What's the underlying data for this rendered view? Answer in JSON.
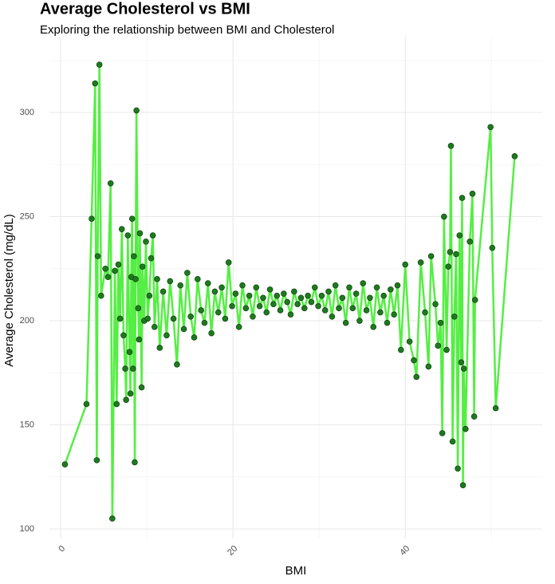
{
  "chart_data": {
    "type": "line",
    "title": "Average Cholesterol vs BMI",
    "subtitle": "Exploring the relationship between BMI and Cholesterol",
    "x_label": "BMI",
    "y_label": "Average Cholesterol (mg/dL)",
    "line_color": "#55ee44",
    "point_color": "#1f7a1f",
    "point_edge": "#0f4a0f",
    "grid": true,
    "xlim": [
      -1.3,
      55.9
    ],
    "ylim": [
      95.4,
      336.8
    ],
    "xticks": [
      0,
      20,
      40
    ],
    "yticks": [
      100,
      150,
      200,
      250,
      300
    ],
    "x_minor_ticks": [
      10,
      30,
      50
    ],
    "y_minor_ticks": [
      125,
      175,
      225,
      275,
      325
    ],
    "x": [
      0.5,
      3,
      3.6,
      4,
      4.2,
      4.3,
      4.5,
      4.7,
      5.2,
      5.5,
      5.8,
      6.0,
      6.3,
      6.5,
      6.7,
      6.9,
      7.1,
      7.3,
      7.5,
      7.6,
      7.8,
      8.0,
      8.1,
      8.2,
      8.3,
      8.4,
      8.5,
      8.6,
      8.7,
      8.8,
      9.0,
      9.1,
      9.2,
      9.4,
      9.5,
      9.7,
      9.9,
      10.1,
      10.3,
      10.5,
      10.7,
      10.9,
      11.2,
      11.5,
      11.9,
      12.3,
      12.7,
      13.1,
      13.5,
      13.9,
      14.3,
      14.7,
      15.1,
      15.5,
      15.9,
      16.3,
      16.7,
      17.1,
      17.5,
      17.9,
      18.3,
      18.7,
      19.1,
      19.5,
      19.9,
      20.3,
      20.7,
      21.1,
      21.5,
      21.9,
      22.3,
      22.7,
      23.1,
      23.5,
      23.9,
      24.3,
      24.7,
      25.1,
      25.5,
      25.9,
      26.3,
      26.7,
      27.1,
      27.5,
      27.9,
      28.3,
      28.7,
      29.1,
      29.5,
      29.9,
      30.3,
      30.7,
      31.1,
      31.5,
      31.9,
      32.3,
      32.7,
      33.1,
      33.5,
      33.9,
      34.3,
      34.7,
      35.1,
      35.5,
      35.9,
      36.3,
      36.7,
      37.1,
      37.5,
      37.9,
      38.3,
      38.7,
      39.1,
      39.5,
      40,
      40.5,
      41,
      41.3,
      41.8,
      42.3,
      42.7,
      43.0,
      43.5,
      43.8,
      44.1,
      44.3,
      44.5,
      44.8,
      45.0,
      45.2,
      45.3,
      45.5,
      45.7,
      45.9,
      46.1,
      46.3,
      46.5,
      46.6,
      46.7,
      46.8,
      47.0,
      47.5,
      47.8,
      48.0,
      48.1,
      49.9,
      50.1,
      50.5,
      52.7
    ],
    "y": [
      131,
      160,
      249,
      314,
      133,
      231,
      323,
      212,
      225,
      221,
      266,
      105,
      224,
      160,
      227,
      201,
      244,
      193,
      177,
      162,
      241,
      185,
      165,
      221,
      249,
      177,
      231,
      132,
      220,
      301,
      206,
      191,
      242,
      168,
      226,
      200,
      238,
      201,
      212,
      230,
      241,
      197,
      220,
      187,
      214,
      193,
      219,
      201,
      179,
      217,
      196,
      223,
      202,
      192,
      220,
      205,
      199,
      218,
      194,
      214,
      204,
      216,
      201,
      228,
      207,
      213,
      197,
      217,
      206,
      212,
      202,
      216,
      207,
      211,
      204,
      215,
      208,
      212,
      205,
      213,
      209,
      203,
      214,
      208,
      211,
      206,
      212,
      209,
      216,
      207,
      212,
      205,
      214,
      202,
      217,
      206,
      211,
      199,
      216,
      206,
      213,
      200,
      218,
      205,
      211,
      197,
      216,
      204,
      212,
      199,
      215,
      203,
      217,
      186,
      227,
      190,
      181,
      173,
      228,
      204,
      178,
      231,
      208,
      188,
      199,
      146,
      250,
      186,
      226,
      233,
      284,
      142,
      202,
      232,
      129,
      241,
      180,
      259,
      121,
      177,
      148,
      238,
      261,
      154,
      210,
      293,
      235,
      158,
      279
    ]
  }
}
